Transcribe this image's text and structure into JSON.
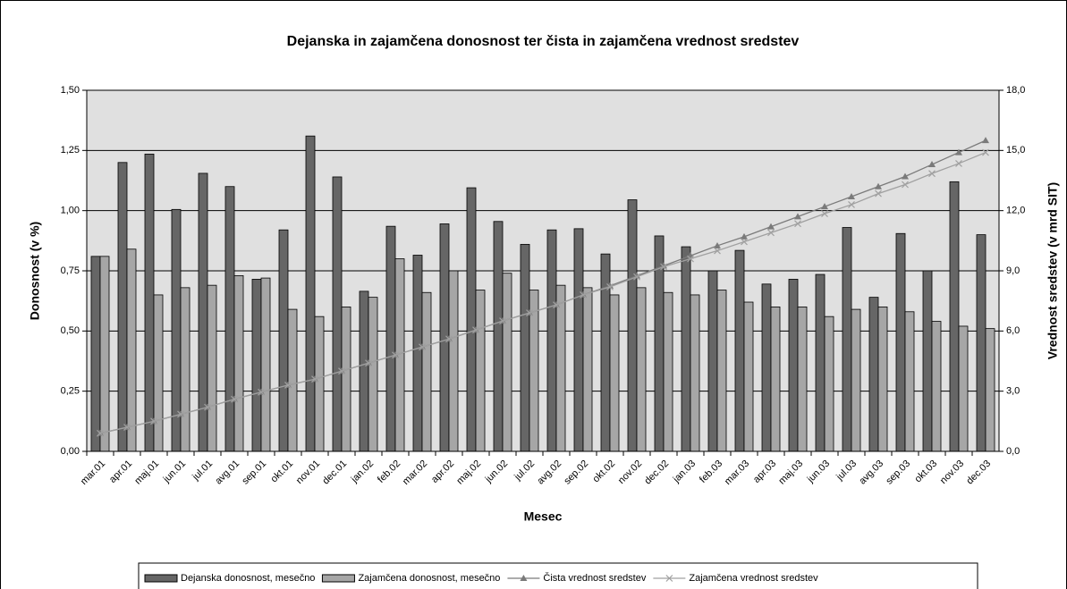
{
  "chart_data": {
    "type": "bar",
    "title": "Dejanska in zajamčena donosnost ter čista in zajamčena vrednost sredstev",
    "x_label": "Mesec",
    "y_label": "Donosnost (v %)",
    "y2_label": "Vrednost sredstev (v mrd SIT)",
    "categories": [
      "mar.01",
      "apr.01",
      "maj.01",
      "jun.01",
      "jul.01",
      "avg.01",
      "sep.01",
      "okt.01",
      "nov.01",
      "dec.01",
      "jan.02",
      "feb.02",
      "mar.02",
      "apr.02",
      "maj.02",
      "jun.02",
      "jul.02",
      "avg.02",
      "sep.02",
      "okt.02",
      "nov.02",
      "dec.02",
      "jan.03",
      "feb.03",
      "mar.03",
      "apr.03",
      "maj.03",
      "jun.03",
      "jul.03",
      "avg.03",
      "sep.03",
      "okt.03",
      "nov.03",
      "dec.03"
    ],
    "series": [
      {
        "name": "Dejanska donosnost, mesečno",
        "type": "bar",
        "color": "#666666",
        "values": [
          0.81,
          1.2,
          1.235,
          1.005,
          1.155,
          1.1,
          0.715,
          0.92,
          1.31,
          1.14,
          0.665,
          0.935,
          0.815,
          0.945,
          1.095,
          0.955,
          0.86,
          0.92,
          0.925,
          0.82,
          1.045,
          0.895,
          0.85,
          0.75,
          0.835,
          0.695,
          0.715,
          0.735,
          0.93,
          0.64,
          0.905,
          0.75,
          1.12,
          0.9
        ]
      },
      {
        "name": "Zajamčena donosnost, mesečno",
        "type": "bar",
        "color": "#a6a6a6",
        "values": [
          0.81,
          0.84,
          0.65,
          0.68,
          0.69,
          0.73,
          0.72,
          0.59,
          0.56,
          0.6,
          0.64,
          0.8,
          0.66,
          0.75,
          0.67,
          0.74,
          0.67,
          0.69,
          0.68,
          0.65,
          0.68,
          0.66,
          0.65,
          0.67,
          0.62,
          0.6,
          0.6,
          0.56,
          0.59,
          0.6,
          0.58,
          0.54,
          0.52,
          0.51
        ]
      },
      {
        "name": "Čista vrednost sredstev",
        "type": "line",
        "axis": "y2",
        "marker": "triangle",
        "color": "#7a7a7a",
        "values": [
          0.9,
          1.2,
          1.5,
          1.85,
          2.2,
          2.6,
          2.95,
          3.3,
          3.6,
          4.0,
          4.4,
          4.8,
          5.2,
          5.6,
          6.05,
          6.5,
          6.9,
          7.3,
          7.8,
          8.25,
          8.75,
          9.25,
          9.75,
          10.25,
          10.7,
          11.2,
          11.7,
          12.2,
          12.7,
          13.2,
          13.7,
          14.3,
          14.9,
          15.5
        ]
      },
      {
        "name": "Zajamčena vrednost sredstev",
        "type": "line",
        "axis": "y2",
        "marker": "x",
        "color": "#a0a0a0",
        "values": [
          0.9,
          1.2,
          1.5,
          1.85,
          2.2,
          2.6,
          2.95,
          3.3,
          3.6,
          4.0,
          4.4,
          4.8,
          5.2,
          5.6,
          6.05,
          6.5,
          6.9,
          7.3,
          7.8,
          8.2,
          8.7,
          9.2,
          9.6,
          10.0,
          10.45,
          10.9,
          11.35,
          11.85,
          12.3,
          12.85,
          13.3,
          13.85,
          14.35,
          14.9
        ]
      }
    ],
    "ylim": [
      0,
      1.5
    ],
    "yticks": [
      {
        "value": 0,
        "label": "0,00"
      },
      {
        "value": 0.25,
        "label": "0,25"
      },
      {
        "value": 0.5,
        "label": "0,50"
      },
      {
        "value": 0.75,
        "label": "0,75"
      },
      {
        "value": 1,
        "label": "1,00"
      },
      {
        "value": 1.25,
        "label": "1,25"
      },
      {
        "value": 1.5,
        "label": "1,50"
      }
    ],
    "y2lim": [
      0,
      18
    ],
    "y2ticks": [
      {
        "value": 0,
        "label": "0,0"
      },
      {
        "value": 3,
        "label": "3,0"
      },
      {
        "value": 6,
        "label": "6,0"
      },
      {
        "value": 9,
        "label": "9,0"
      },
      {
        "value": 12,
        "label": "12,0"
      },
      {
        "value": 15,
        "label": "15,0"
      },
      {
        "value": 18,
        "label": "18,0"
      }
    ],
    "grid": true,
    "legend": "bottom"
  }
}
